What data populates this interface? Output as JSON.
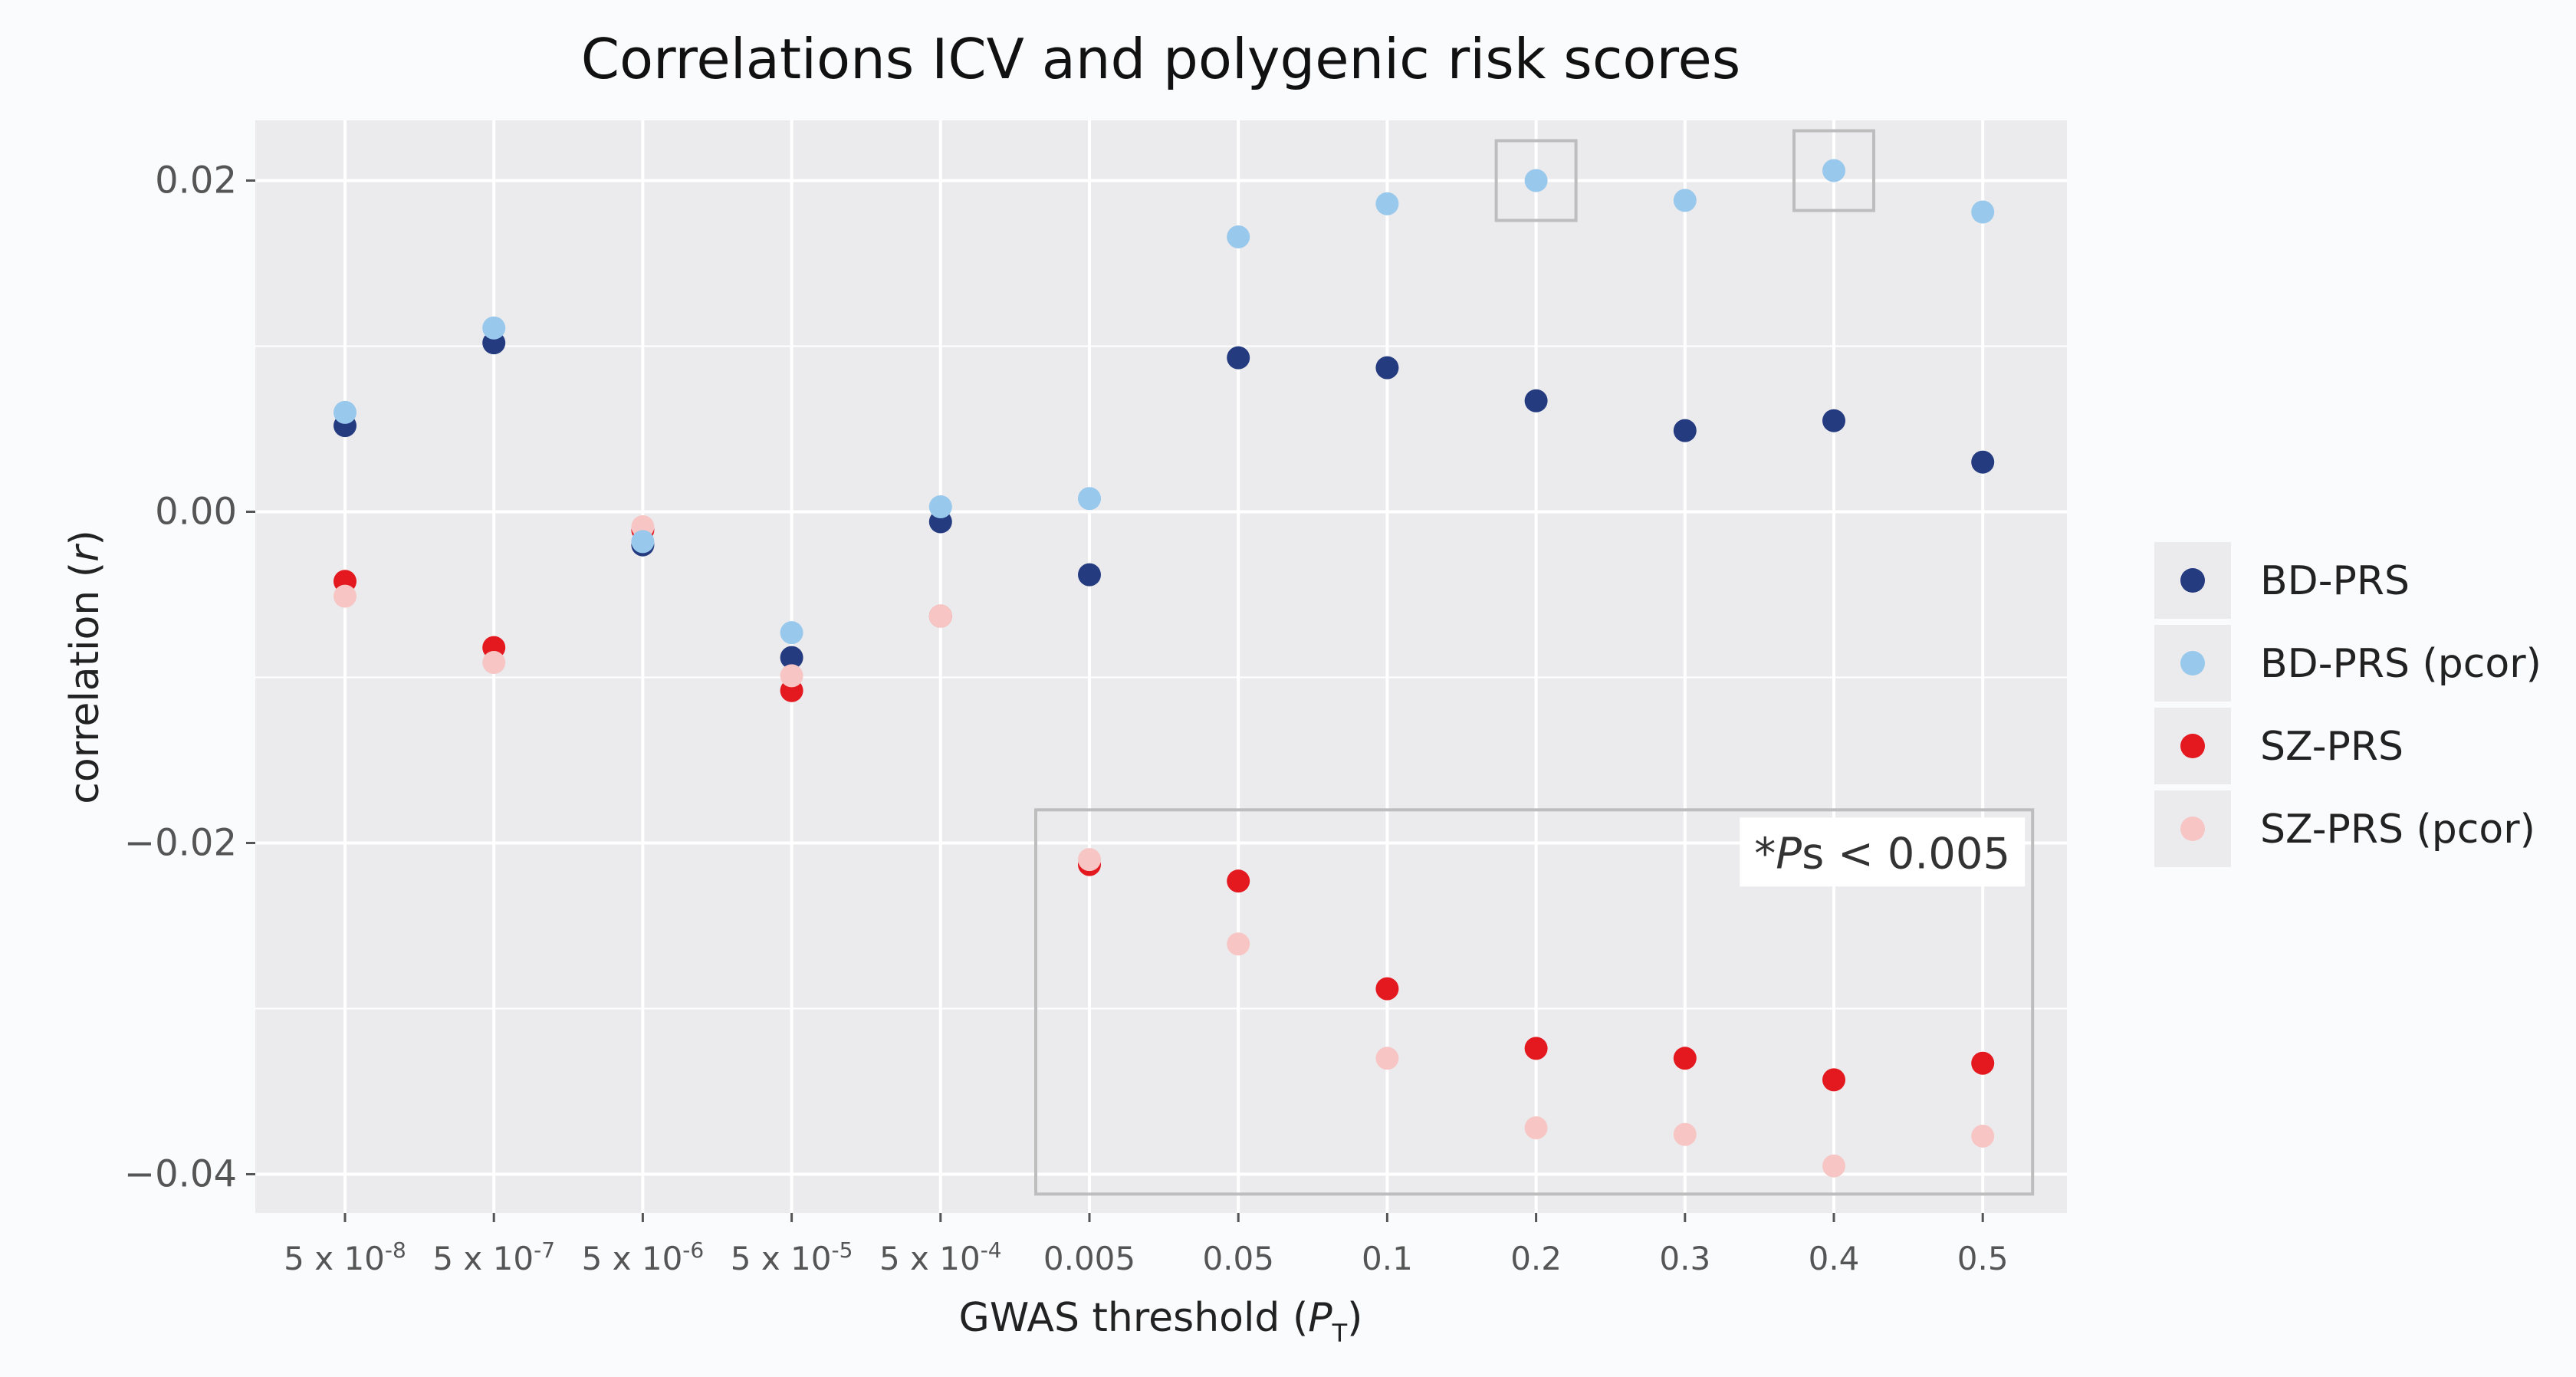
{
  "chart_data": {
    "type": "scatter",
    "title": "Correlations ICV and polygenic risk scores",
    "xlabel": "GWAS threshold",
    "xlabel_symbol": "P",
    "xlabel_subscript": "T",
    "ylabel": "correlation",
    "ylabel_symbol": "r",
    "ylim": [
      -0.042,
      0.024
    ],
    "y_ticks": [
      0.02,
      0.0,
      -0.02,
      -0.04
    ],
    "y_tick_labels": [
      "0.02",
      "0.00",
      "−0.02",
      "−0.04"
    ],
    "categories": [
      {
        "base": "5 x 10",
        "exp": "-8"
      },
      {
        "base": "5 x 10",
        "exp": "-7"
      },
      {
        "base": "5 x 10",
        "exp": "-6"
      },
      {
        "base": "5 x 10",
        "exp": "-5"
      },
      {
        "base": "5 x 10",
        "exp": "-4"
      },
      {
        "base": "0.005",
        "exp": ""
      },
      {
        "base": "0.05",
        "exp": ""
      },
      {
        "base": "0.1",
        "exp": ""
      },
      {
        "base": "0.2",
        "exp": ""
      },
      {
        "base": "0.3",
        "exp": ""
      },
      {
        "base": "0.4",
        "exp": ""
      },
      {
        "base": "0.5",
        "exp": ""
      }
    ],
    "series": [
      {
        "name": "BD-PRS",
        "color": "#243b80",
        "values": [
          0.0052,
          0.0102,
          -0.002,
          -0.0088,
          -0.0006,
          -0.0038,
          0.0093,
          0.0087,
          0.0067,
          0.0049,
          0.0055,
          0.003
        ]
      },
      {
        "name": "BD-PRS (pcor)",
        "color": "#98c8ec",
        "values": [
          0.006,
          0.0111,
          -0.0018,
          -0.0073,
          0.0003,
          0.0008,
          0.0166,
          0.0186,
          0.02,
          0.0188,
          0.0206,
          0.0181
        ]
      },
      {
        "name": "SZ-PRS",
        "color": "#e3191f",
        "values": [
          -0.0042,
          -0.0082,
          -0.0011,
          -0.0108,
          -0.0063,
          -0.0213,
          -0.0223,
          -0.0288,
          -0.0324,
          -0.033,
          -0.0343,
          -0.0333
        ]
      },
      {
        "name": "SZ-PRS (pcor)",
        "color": "#f7c6c4",
        "values": [
          -0.0051,
          -0.0091,
          -0.0009,
          -0.0099,
          -0.0063,
          -0.021,
          -0.0261,
          -0.033,
          -0.0372,
          -0.0376,
          -0.0395,
          -0.0377
        ]
      }
    ],
    "annotation": {
      "star": "*",
      "symbol": "P",
      "text": "s < 0.005"
    },
    "highlight_points": [
      {
        "series": "BD-PRS (pcor)",
        "category_index": 8
      },
      {
        "series": "BD-PRS (pcor)",
        "category_index": 10
      }
    ],
    "highlight_region": {
      "category_from": 5,
      "category_to": 11,
      "y_from": -0.0412,
      "y_to": -0.018
    },
    "colors": {
      "panel": "#ebebee",
      "grid": "#ffffff",
      "frame": "#bdbdbd",
      "background": "#fafbfc",
      "legend_key_bg": "#ebebee"
    }
  }
}
